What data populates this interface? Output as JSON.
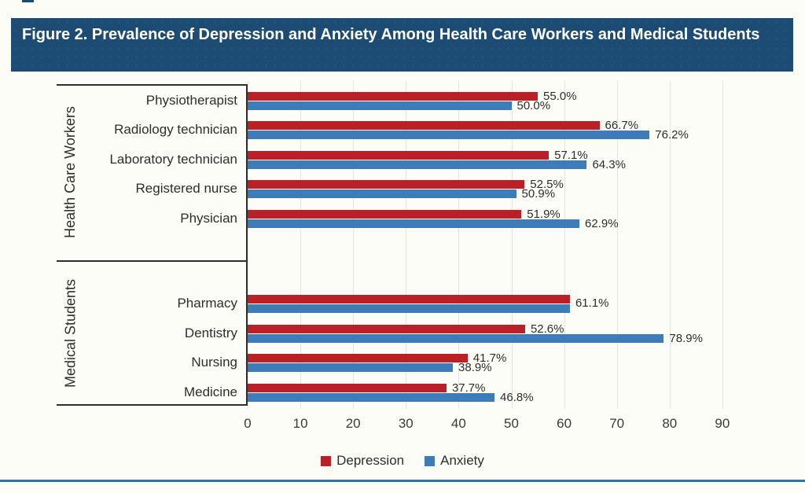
{
  "title": "Figure 2. Prevalence of Depression and Anxiety Among Health Care Workers and Medical Students",
  "colors": {
    "header_bg": "#1C4B74",
    "depression": "#B92127",
    "anxiety": "#3E7CB8",
    "bottom_rule": "#2E76AB",
    "page_bg": "#FDFDF8"
  },
  "legend": [
    {
      "label": "Depression",
      "color_key": "depression"
    },
    {
      "label": "Anxiety",
      "color_key": "anxiety"
    }
  ],
  "chart_data": {
    "type": "bar",
    "orientation": "horizontal",
    "title": "Figure 2. Prevalence of Depression and Anxiety Among Health Care Workers and Medical Students",
    "xlabel": "",
    "ylabel": "",
    "xlim": [
      0,
      90
    ],
    "x_ticks": [
      0,
      10,
      20,
      30,
      40,
      50,
      60,
      70,
      80,
      90
    ],
    "value_suffix": "%",
    "grid": "vertical",
    "legend_position": "bottom",
    "groups": [
      {
        "name": "Health Care Workers",
        "categories": [
          "Physiotherapist",
          "Radiology technician",
          "Laboratory technician",
          "Registered nurse",
          "Physician"
        ],
        "series": [
          {
            "name": "Depression",
            "values": [
              55.0,
              66.7,
              57.1,
              52.5,
              51.9
            ]
          },
          {
            "name": "Anxiety",
            "values": [
              50.0,
              76.2,
              64.3,
              50.9,
              62.9
            ]
          }
        ]
      },
      {
        "name": "Medical Students",
        "categories": [
          "Pharmacy",
          "Dentistry",
          "Nursing",
          "Medicine"
        ],
        "series": [
          {
            "name": "Depression",
            "values": [
              61.1,
              52.6,
              41.7,
              37.7
            ]
          },
          {
            "name": "Anxiety",
            "values": [
              61.1,
              78.9,
              38.9,
              46.8
            ]
          }
        ],
        "combined_label_categories": [
          "Pharmacy"
        ]
      }
    ]
  }
}
